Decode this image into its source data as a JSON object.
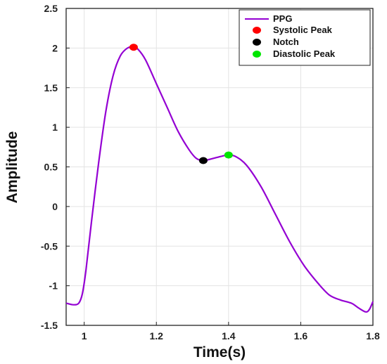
{
  "chart_data": {
    "type": "line",
    "xlabel": "Time(s)",
    "ylabel": "Amplitude",
    "xlim": [
      0.95,
      1.8
    ],
    "ylim": [
      -1.5,
      2.5
    ],
    "xticks": [
      "1",
      "1.2",
      "1.4",
      "1.6",
      "1.8"
    ],
    "yticks": [
      "-1.5",
      "-1",
      "-0.5",
      "0",
      "0.5",
      "1",
      "1.5",
      "2",
      "2.5"
    ],
    "grid": true,
    "legend_position": "top-right",
    "series": [
      {
        "name": "PPG",
        "color": "#9400D3",
        "x": [
          0.95,
          0.97,
          0.985,
          0.995,
          1.005,
          1.02,
          1.04,
          1.06,
          1.08,
          1.1,
          1.12,
          1.137,
          1.15,
          1.17,
          1.2,
          1.23,
          1.26,
          1.29,
          1.31,
          1.33,
          1.36,
          1.39,
          1.4,
          1.42,
          1.45,
          1.49,
          1.53,
          1.57,
          1.61,
          1.65,
          1.68,
          1.71,
          1.74,
          1.76,
          1.78,
          1.79,
          1.8
        ],
        "y": [
          -1.22,
          -1.24,
          -1.22,
          -1.1,
          -0.8,
          -0.2,
          0.55,
          1.2,
          1.65,
          1.9,
          2.0,
          2.01,
          1.98,
          1.85,
          1.55,
          1.25,
          0.95,
          0.72,
          0.61,
          0.58,
          0.61,
          0.645,
          0.65,
          0.63,
          0.52,
          0.25,
          -0.1,
          -0.45,
          -0.75,
          -0.98,
          -1.12,
          -1.18,
          -1.22,
          -1.28,
          -1.33,
          -1.3,
          -1.2
        ]
      }
    ],
    "markers": [
      {
        "name": "Systolic Peak",
        "x": 1.137,
        "y": 2.01,
        "color": "#FF0000"
      },
      {
        "name": "Notch",
        "x": 1.33,
        "y": 0.58,
        "color": "#000000"
      },
      {
        "name": "Diastolic Peak",
        "x": 1.4,
        "y": 0.65,
        "color": "#00E600"
      }
    ]
  }
}
